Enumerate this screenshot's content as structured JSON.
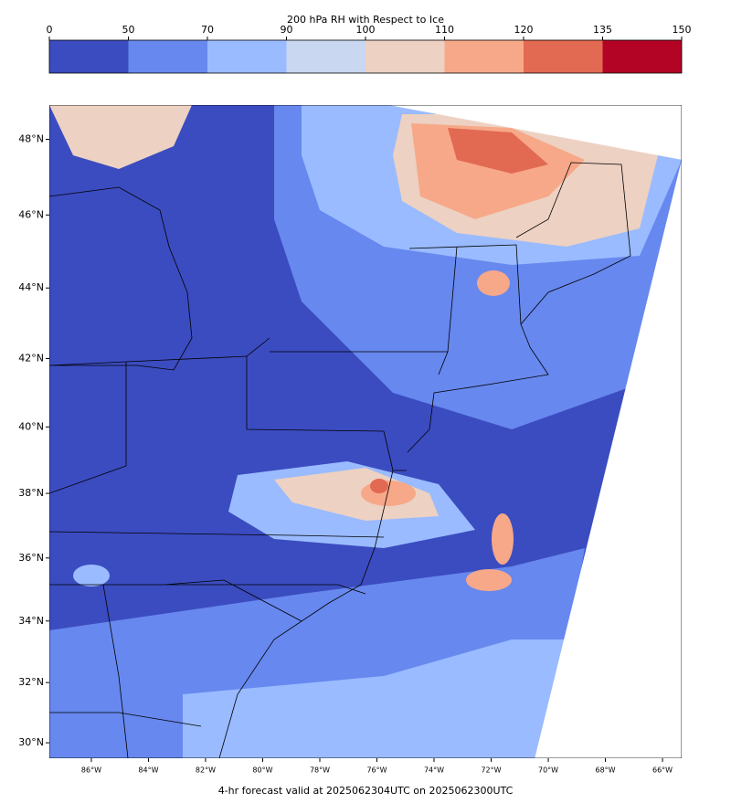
{
  "chart_data": {
    "type": "map",
    "title": "200 hPa RH with Respect to Ice",
    "colorbar": {
      "ticks": [
        0,
        50,
        70,
        90,
        100,
        110,
        120,
        135,
        150
      ],
      "colors": [
        "#3b4cc0",
        "#6788ee",
        "#9abbff",
        "#c9d7f0",
        "#edd1c2",
        "#f7a889",
        "#e26952",
        "#b40426"
      ]
    },
    "xlim": [
      -87.47,
      -65.33
    ],
    "ylim": [
      29.48,
      48.88
    ],
    "xticks": [
      {
        "value": -86,
        "label": "86°W"
      },
      {
        "value": -84,
        "label": "84°W"
      },
      {
        "value": -82,
        "label": "82°W"
      },
      {
        "value": -80,
        "label": "80°W"
      },
      {
        "value": -78,
        "label": "78°W"
      },
      {
        "value": -76,
        "label": "76°W"
      },
      {
        "value": -74,
        "label": "74°W"
      },
      {
        "value": -72,
        "label": "72°W"
      },
      {
        "value": -70,
        "label": "70°W"
      },
      {
        "value": -68,
        "label": "68°W"
      },
      {
        "value": -66,
        "label": "66°W"
      }
    ],
    "yticks": [
      {
        "value": 30,
        "label": "30°N"
      },
      {
        "value": 32,
        "label": "32°N"
      },
      {
        "value": 34,
        "label": "34°N"
      },
      {
        "value": 36,
        "label": "36°N"
      },
      {
        "value": 38,
        "label": "38°N"
      },
      {
        "value": 40,
        "label": "40°N"
      },
      {
        "value": 42,
        "label": "42°N"
      },
      {
        "value": 44,
        "label": "44°N"
      },
      {
        "value": 46,
        "label": "46°N"
      },
      {
        "value": 48,
        "label": "48°N"
      }
    ],
    "footer": "4-hr forecast valid at 2025062304UTC on 2025062300UTC",
    "footer_color": "#ff0000"
  }
}
